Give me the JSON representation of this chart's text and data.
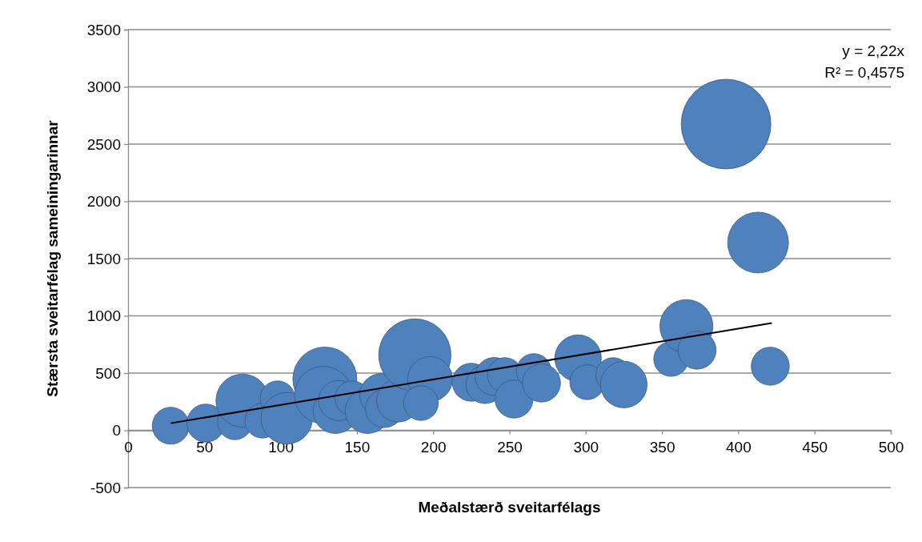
{
  "chart_data": {
    "type": "bubble",
    "xlabel": "Meðalstærð sveitarfélags",
    "ylabel": "Stærsta sveitarfélag sameiningarinnar",
    "xlim": [
      0,
      500
    ],
    "xticks": [
      0,
      50,
      100,
      150,
      200,
      250,
      300,
      350,
      400,
      450,
      500
    ],
    "ylim": [
      -500,
      3500
    ],
    "yticks": [
      -500,
      0,
      500,
      1000,
      1500,
      2000,
      2500,
      3000,
      3500
    ],
    "grid": "y",
    "annotations": [
      "y = 2,22x",
      "R² = 0,4575"
    ],
    "series": [
      {
        "color": "#4f81bd",
        "x": [
          28,
          51,
          70,
          75,
          88,
          98,
          104,
          129,
          128,
          136,
          138,
          147,
          157,
          166,
          168,
          177,
          188,
          198,
          192,
          225,
          234,
          240,
          247,
          253,
          266,
          271,
          295,
          301,
          318,
          325,
          356,
          366,
          373,
          421,
          392,
          413
        ],
        "values": [
          40,
          63,
          70,
          260,
          84,
          280,
          105,
          448,
          308,
          168,
          260,
          280,
          168,
          308,
          190,
          260,
          658,
          448,
          238,
          420,
          400,
          470,
          483,
          273,
          518,
          413,
          630,
          420,
          483,
          400,
          623,
          910,
          700,
          560,
          2675,
          1640
        ],
        "sizes": [
          0.17,
          0.18,
          0.15,
          0.35,
          0.15,
          0.15,
          0.33,
          0.51,
          0.41,
          0.25,
          0.2,
          0.15,
          0.25,
          0.23,
          0.18,
          0.23,
          0.65,
          0.25,
          0.15,
          0.18,
          0.18,
          0.18,
          0.15,
          0.18,
          0.15,
          0.18,
          0.27,
          0.15,
          0.15,
          0.27,
          0.15,
          0.35,
          0.18,
          0.18,
          1,
          0.46
        ]
      },
      {
        "type": "line",
        "color": "#000000",
        "x": [
          28,
          422
        ],
        "values": [
          62,
          937
        ]
      }
    ]
  }
}
